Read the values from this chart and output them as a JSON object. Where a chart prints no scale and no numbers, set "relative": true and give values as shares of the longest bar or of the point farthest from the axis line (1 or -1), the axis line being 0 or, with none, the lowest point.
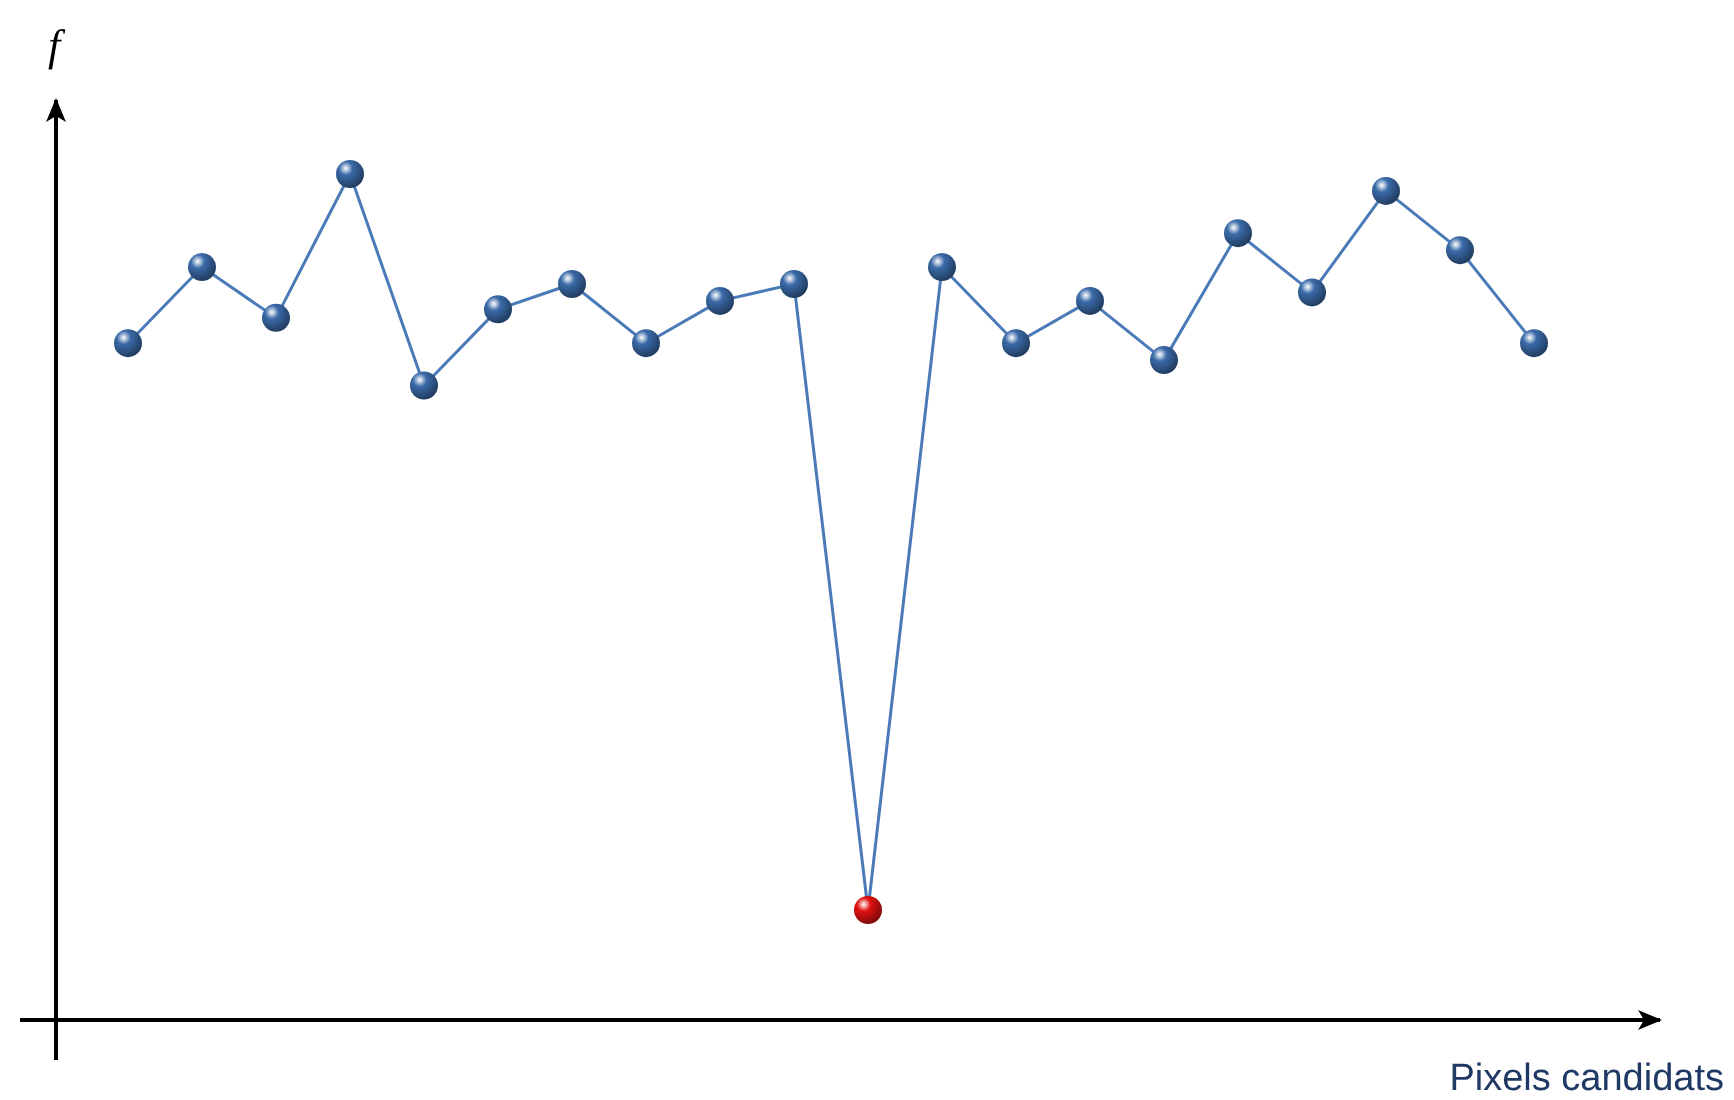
{
  "chart_data": {
    "type": "line",
    "relative": true,
    "xlabel": "Pixels candidats",
    "ylabel": "f",
    "marker": "circle",
    "categories": [
      null,
      null,
      null,
      null,
      null,
      null,
      null,
      null,
      null,
      null,
      null,
      null,
      null,
      null,
      null,
      null,
      null,
      null,
      null,
      null
    ],
    "series": [
      {
        "color": "#4a7ab8",
        "colors": [
          "#3a6aa8",
          "#3a6aa8",
          "#3a6aa8",
          "#3a6aa8",
          "#3a6aa8",
          "#3a6aa8",
          "#3a6aa8",
          "#3a6aa8",
          "#3a6aa8",
          "#3a6aa8",
          "#e01010",
          "#3a6aa8",
          "#3a6aa8",
          "#3a6aa8",
          "#3a6aa8",
          "#3a6aa8",
          "#3a6aa8",
          "#3a6aa8",
          "#3a6aa8",
          "#3a6aa8"
        ],
        "values": [
          0.8,
          0.89,
          0.83,
          1,
          0.75,
          0.84,
          0.87,
          0.8,
          0.85,
          0.87,
          0.13,
          0.89,
          0.8,
          0.85,
          0.78,
          0.93,
          0.86,
          0.98,
          0.91,
          0.8
        ]
      }
    ]
  }
}
